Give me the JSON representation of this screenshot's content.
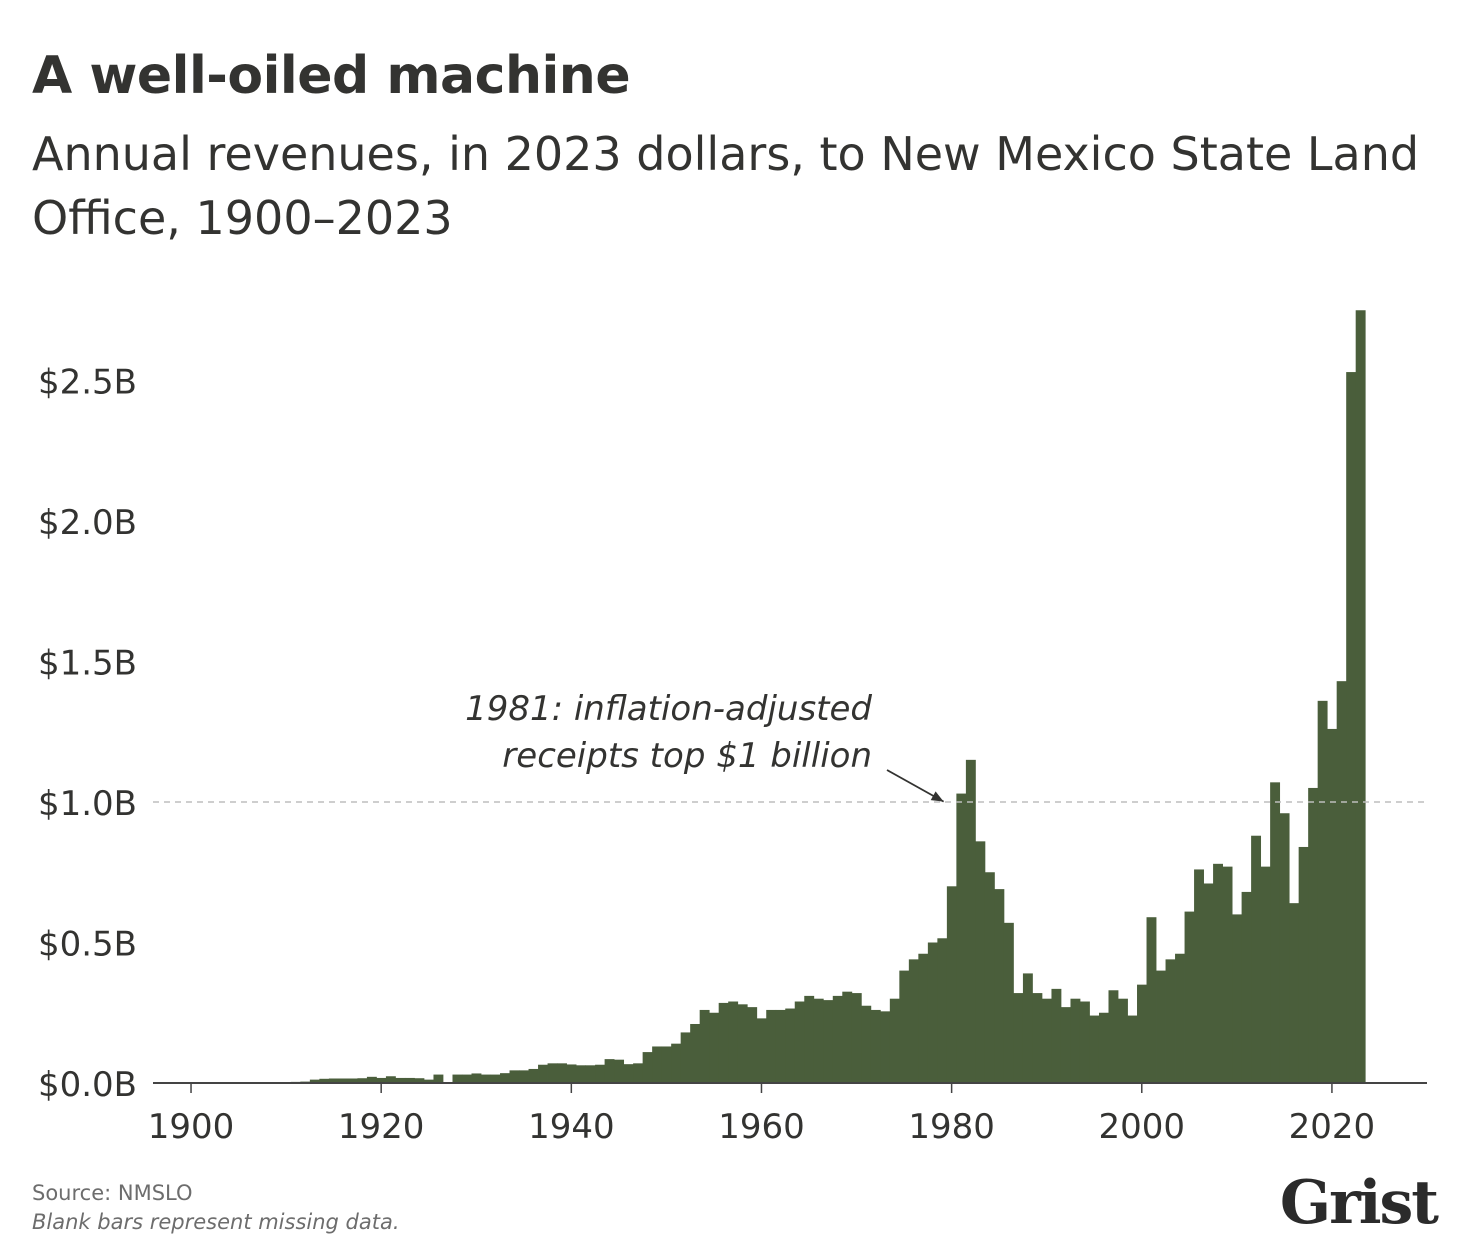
{
  "header": {
    "title": "A well-oiled machine",
    "subtitle": "Annual revenues, in 2023 dollars, to New Mexico State Land Office, 1900–2023"
  },
  "footer": {
    "source": "Source: NMSLO",
    "note": "Blank bars represent missing data.",
    "logo": "Grist"
  },
  "colors": {
    "bar": "#4a5e3b",
    "text": "#333331",
    "gridline": "#bdbdbd",
    "axis": "#444444"
  },
  "chart_data": {
    "type": "bar",
    "title": "A well-oiled machine",
    "subtitle": "Annual revenues, in 2023 dollars, to New Mexico State Land Office, 1900–2023",
    "xlabel": "",
    "ylabel": "",
    "ylim": [
      0,
      2.75
    ],
    "xlim": [
      1896,
      2030
    ],
    "y_ticks": [
      0,
      0.5,
      1.0,
      1.5,
      2.0,
      2.5
    ],
    "y_tick_labels": [
      "$0.0B",
      "$0.5B",
      "$1.0B",
      "$1.5B",
      "$2.0B",
      "$2.5B"
    ],
    "x_ticks": [
      1900,
      1920,
      1940,
      1960,
      1980,
      2000,
      2020
    ],
    "x_tick_labels": [
      "1900",
      "1920",
      "1940",
      "1960",
      "1980",
      "2000",
      "2020"
    ],
    "reference_line": {
      "y": 1.0,
      "style": "dashed"
    },
    "annotation": {
      "line1": "1981: inflation-adjusted",
      "line2": "receipts top $1 billion",
      "target": {
        "x": 1980,
        "y": 0.98
      }
    },
    "unit": "billions of 2023 dollars",
    "series": [
      {
        "x": [
          1900,
          1901,
          1902,
          1903,
          1904,
          1905,
          1906,
          1907,
          1908,
          1909,
          1910,
          1911,
          1912,
          1913,
          1914,
          1915,
          1916,
          1917,
          1918,
          1919,
          1920,
          1921,
          1922,
          1923,
          1924,
          1925,
          1926,
          1927,
          1928,
          1929,
          1930,
          1931,
          1932,
          1933,
          1934,
          1935,
          1936,
          1937,
          1938,
          1939,
          1940,
          1941,
          1942,
          1943,
          1944,
          1945,
          1946,
          1947,
          1948,
          1949,
          1950,
          1951,
          1952,
          1953,
          1954,
          1955,
          1956,
          1957,
          1958,
          1959,
          1960,
          1961,
          1962,
          1963,
          1964,
          1965,
          1966,
          1967,
          1968,
          1969,
          1970,
          1971,
          1972,
          1973,
          1974,
          1975,
          1976,
          1977,
          1978,
          1979,
          1980,
          1981,
          1982,
          1983,
          1984,
          1985,
          1986,
          1987,
          1988,
          1989,
          1990,
          1991,
          1992,
          1993,
          1994,
          1995,
          1996,
          1997,
          1998,
          1999,
          2000,
          2001,
          2002,
          2003,
          2004,
          2005,
          2006,
          2007,
          2008,
          2009,
          2010,
          2011,
          2012,
          2013,
          2014,
          2015,
          2016,
          2017,
          2018,
          2019,
          2020,
          2021,
          2022,
          2023
        ],
        "values": [
          0.002,
          0.002,
          0.002,
          0.002,
          0.002,
          0.002,
          0.002,
          0.002,
          0.002,
          0.003,
          0.003,
          0.004,
          0.005,
          0.012,
          0.015,
          0.016,
          0.016,
          0.016,
          0.017,
          0.022,
          0.018,
          0.024,
          0.018,
          0.018,
          0.017,
          0.012,
          0.03,
          null,
          0.03,
          0.03,
          0.034,
          0.03,
          0.03,
          0.035,
          0.045,
          0.045,
          0.05,
          0.065,
          0.07,
          0.07,
          0.066,
          0.063,
          0.063,
          0.065,
          0.085,
          0.083,
          0.067,
          0.07,
          0.11,
          0.13,
          0.13,
          0.14,
          0.18,
          0.21,
          0.26,
          0.25,
          0.285,
          0.29,
          0.28,
          0.27,
          0.23,
          0.26,
          0.26,
          0.265,
          0.29,
          0.31,
          0.3,
          0.295,
          0.31,
          0.325,
          0.32,
          0.275,
          0.26,
          0.255,
          0.3,
          0.4,
          0.44,
          0.46,
          0.5,
          0.515,
          0.7,
          1.03,
          1.15,
          0.86,
          0.75,
          0.69,
          0.57,
          0.32,
          0.39,
          0.32,
          0.3,
          0.335,
          0.27,
          0.3,
          0.29,
          0.24,
          0.25,
          0.33,
          0.3,
          0.24,
          0.35,
          0.59,
          0.4,
          0.44,
          0.46,
          0.61,
          0.76,
          0.71,
          0.78,
          0.77,
          0.6,
          0.68,
          0.88,
          0.77,
          1.07,
          0.96,
          0.64,
          0.84,
          1.05,
          1.36,
          1.26,
          1.43,
          2.53,
          2.75
        ]
      }
    ]
  }
}
